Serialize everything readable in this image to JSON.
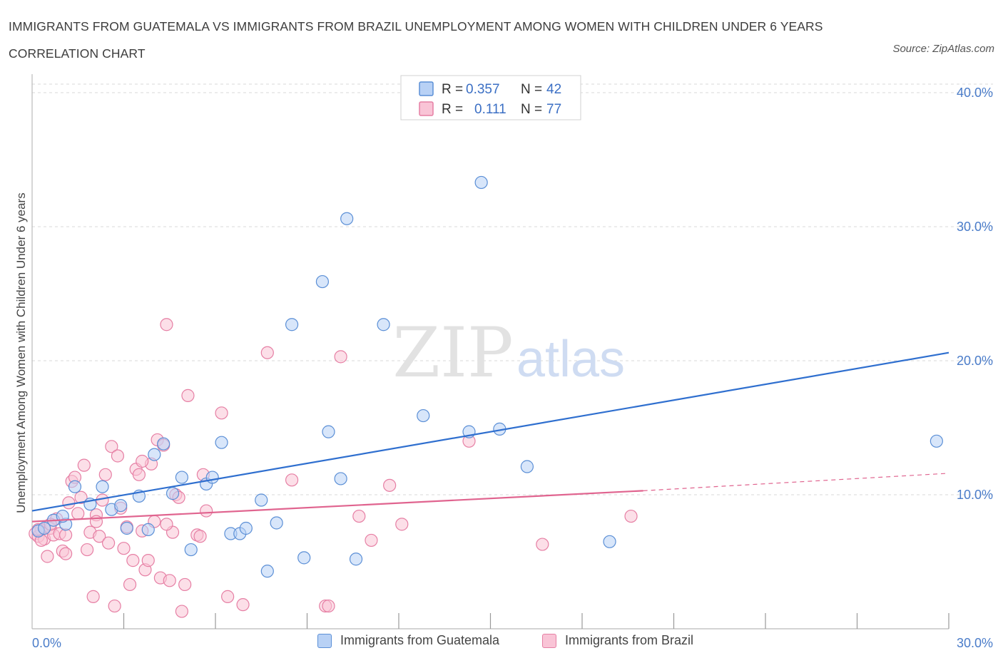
{
  "title": "IMMIGRANTS FROM GUATEMALA VS IMMIGRANTS FROM BRAZIL UNEMPLOYMENT AMONG WOMEN WITH CHILDREN UNDER 6 YEARS CORRELATION CHART",
  "source": "Source: ZipAtlas.com",
  "watermark": {
    "zip": "ZIP",
    "atlas": "atlas"
  },
  "colors": {
    "guatemala_fill": "#b8d1f5",
    "guatemala_stroke": "#5b8fd6",
    "guatemala_line": "#2f6fcf",
    "brazil_fill": "#f9c4d6",
    "brazil_stroke": "#e67fa4",
    "brazil_line": "#e0648f",
    "tick_text": "#4a7cc9",
    "grid": "#d8d8d8"
  },
  "legend": {
    "rows": [
      {
        "r_label": "R =",
        "r_value": "0.357",
        "n_label": "N =",
        "n_value": "42"
      },
      {
        "r_label": "R =",
        "r_value": "0.111",
        "n_label": "N =",
        "n_value": "77"
      }
    ]
  },
  "chart_data": {
    "type": "scatter",
    "title": "IMMIGRANTS FROM GUATEMALA VS IMMIGRANTS FROM BRAZIL UNEMPLOYMENT AMONG WOMEN WITH CHILDREN UNDER 6 YEARS CORRELATION CHART",
    "ylabel": "Unemployment Among Women with Children Under 6 years",
    "xlabel": "",
    "xlim": [
      0,
      30
    ],
    "ylim": [
      0,
      40
    ],
    "x_tick_labels": [
      "0.0%",
      "30.0%"
    ],
    "y_tick_labels": [
      "10.0%",
      "20.0%",
      "30.0%",
      "40.0%"
    ],
    "y_ticks": [
      10,
      20,
      30,
      40
    ],
    "grid": true,
    "legend_position": "top-center",
    "series": [
      {
        "name": "Immigrants from Guatemala",
        "r": 0.357,
        "n": 42,
        "trend": {
          "x": [
            0,
            30
          ],
          "y": [
            8.8,
            20.6
          ]
        },
        "points": [
          [
            0.2,
            7.3
          ],
          [
            0.4,
            7.5
          ],
          [
            0.7,
            8.1
          ],
          [
            1.1,
            7.8
          ],
          [
            1.4,
            10.6
          ],
          [
            1.9,
            9.3
          ],
          [
            2.3,
            10.6
          ],
          [
            2.6,
            8.9
          ],
          [
            2.9,
            9.2
          ],
          [
            3.1,
            7.5
          ],
          [
            3.5,
            9.9
          ],
          [
            3.8,
            7.4
          ],
          [
            4.0,
            13.0
          ],
          [
            4.3,
            13.8
          ],
          [
            4.6,
            10.1
          ],
          [
            4.9,
            11.3
          ],
          [
            5.2,
            5.9
          ],
          [
            5.7,
            10.8
          ],
          [
            5.9,
            11.3
          ],
          [
            6.2,
            13.9
          ],
          [
            6.5,
            7.1
          ],
          [
            6.8,
            7.1
          ],
          [
            7.0,
            7.5
          ],
          [
            7.5,
            9.6
          ],
          [
            7.7,
            4.3
          ],
          [
            8.0,
            7.9
          ],
          [
            8.5,
            22.7
          ],
          [
            8.9,
            5.3
          ],
          [
            9.5,
            25.9
          ],
          [
            9.7,
            14.7
          ],
          [
            10.1,
            11.2
          ],
          [
            10.3,
            30.6
          ],
          [
            10.6,
            5.2
          ],
          [
            11.5,
            22.7
          ],
          [
            12.8,
            15.9
          ],
          [
            14.3,
            14.7
          ],
          [
            14.7,
            33.3
          ],
          [
            15.3,
            14.9
          ],
          [
            16.2,
            12.1
          ],
          [
            18.9,
            6.5
          ],
          [
            29.6,
            14.0
          ],
          [
            1.0,
            8.4
          ]
        ]
      },
      {
        "name": "Immigrants from Brazil",
        "r": 0.111,
        "n": 77,
        "trend": {
          "x": [
            0,
            20
          ],
          "y": [
            8.0,
            10.3
          ]
        },
        "trend_dashed": {
          "x": [
            20,
            30
          ],
          "y": [
            10.3,
            11.6
          ]
        },
        "points": [
          [
            0.1,
            7.1
          ],
          [
            0.2,
            6.9
          ],
          [
            0.3,
            7.4
          ],
          [
            0.4,
            6.7
          ],
          [
            0.5,
            5.4
          ],
          [
            0.6,
            7.5
          ],
          [
            0.7,
            7.0
          ],
          [
            0.8,
            8.2
          ],
          [
            0.9,
            7.1
          ],
          [
            1.0,
            5.8
          ],
          [
            1.1,
            5.6
          ],
          [
            1.2,
            9.4
          ],
          [
            1.3,
            11.0
          ],
          [
            1.4,
            11.3
          ],
          [
            1.5,
            8.6
          ],
          [
            1.6,
            9.8
          ],
          [
            1.7,
            12.2
          ],
          [
            1.8,
            5.9
          ],
          [
            1.9,
            7.2
          ],
          [
            2.0,
            2.4
          ],
          [
            2.1,
            8.5
          ],
          [
            2.2,
            6.9
          ],
          [
            2.3,
            9.6
          ],
          [
            2.4,
            11.5
          ],
          [
            2.5,
            6.4
          ],
          [
            2.6,
            13.6
          ],
          [
            2.7,
            1.7
          ],
          [
            2.8,
            12.9
          ],
          [
            2.9,
            9.0
          ],
          [
            3.0,
            6.0
          ],
          [
            3.1,
            7.6
          ],
          [
            3.2,
            3.3
          ],
          [
            3.3,
            5.1
          ],
          [
            3.4,
            11.9
          ],
          [
            3.5,
            11.5
          ],
          [
            3.6,
            7.3
          ],
          [
            3.7,
            4.4
          ],
          [
            3.8,
            5.1
          ],
          [
            3.9,
            12.3
          ],
          [
            4.0,
            8.0
          ],
          [
            4.1,
            14.1
          ],
          [
            4.2,
            3.8
          ],
          [
            4.3,
            13.7
          ],
          [
            4.4,
            22.7
          ],
          [
            4.5,
            3.6
          ],
          [
            4.6,
            7.2
          ],
          [
            4.7,
            10.0
          ],
          [
            4.8,
            9.8
          ],
          [
            4.9,
            1.3
          ],
          [
            5.0,
            3.3
          ],
          [
            5.1,
            17.4
          ],
          [
            5.4,
            7.0
          ],
          [
            5.6,
            11.5
          ],
          [
            5.7,
            8.8
          ],
          [
            6.2,
            16.1
          ],
          [
            6.4,
            2.4
          ],
          [
            6.9,
            1.8
          ],
          [
            7.7,
            20.6
          ],
          [
            8.5,
            11.1
          ],
          [
            9.6,
            1.7
          ],
          [
            10.1,
            20.3
          ],
          [
            10.7,
            8.4
          ],
          [
            11.1,
            6.6
          ],
          [
            11.7,
            10.7
          ],
          [
            12.1,
            7.8
          ],
          [
            14.3,
            14.0
          ],
          [
            16.7,
            6.3
          ],
          [
            19.6,
            8.4
          ],
          [
            0.3,
            6.6
          ],
          [
            0.6,
            7.8
          ],
          [
            1.1,
            7.0
          ],
          [
            2.1,
            8.0
          ],
          [
            3.6,
            12.5
          ],
          [
            4.4,
            7.8
          ],
          [
            5.5,
            6.9
          ],
          [
            9.7,
            1.7
          ],
          [
            0.2,
            7.4
          ]
        ]
      }
    ]
  },
  "bottom_legend": [
    "Immigrants from Guatemala",
    "Immigrants from Brazil"
  ]
}
